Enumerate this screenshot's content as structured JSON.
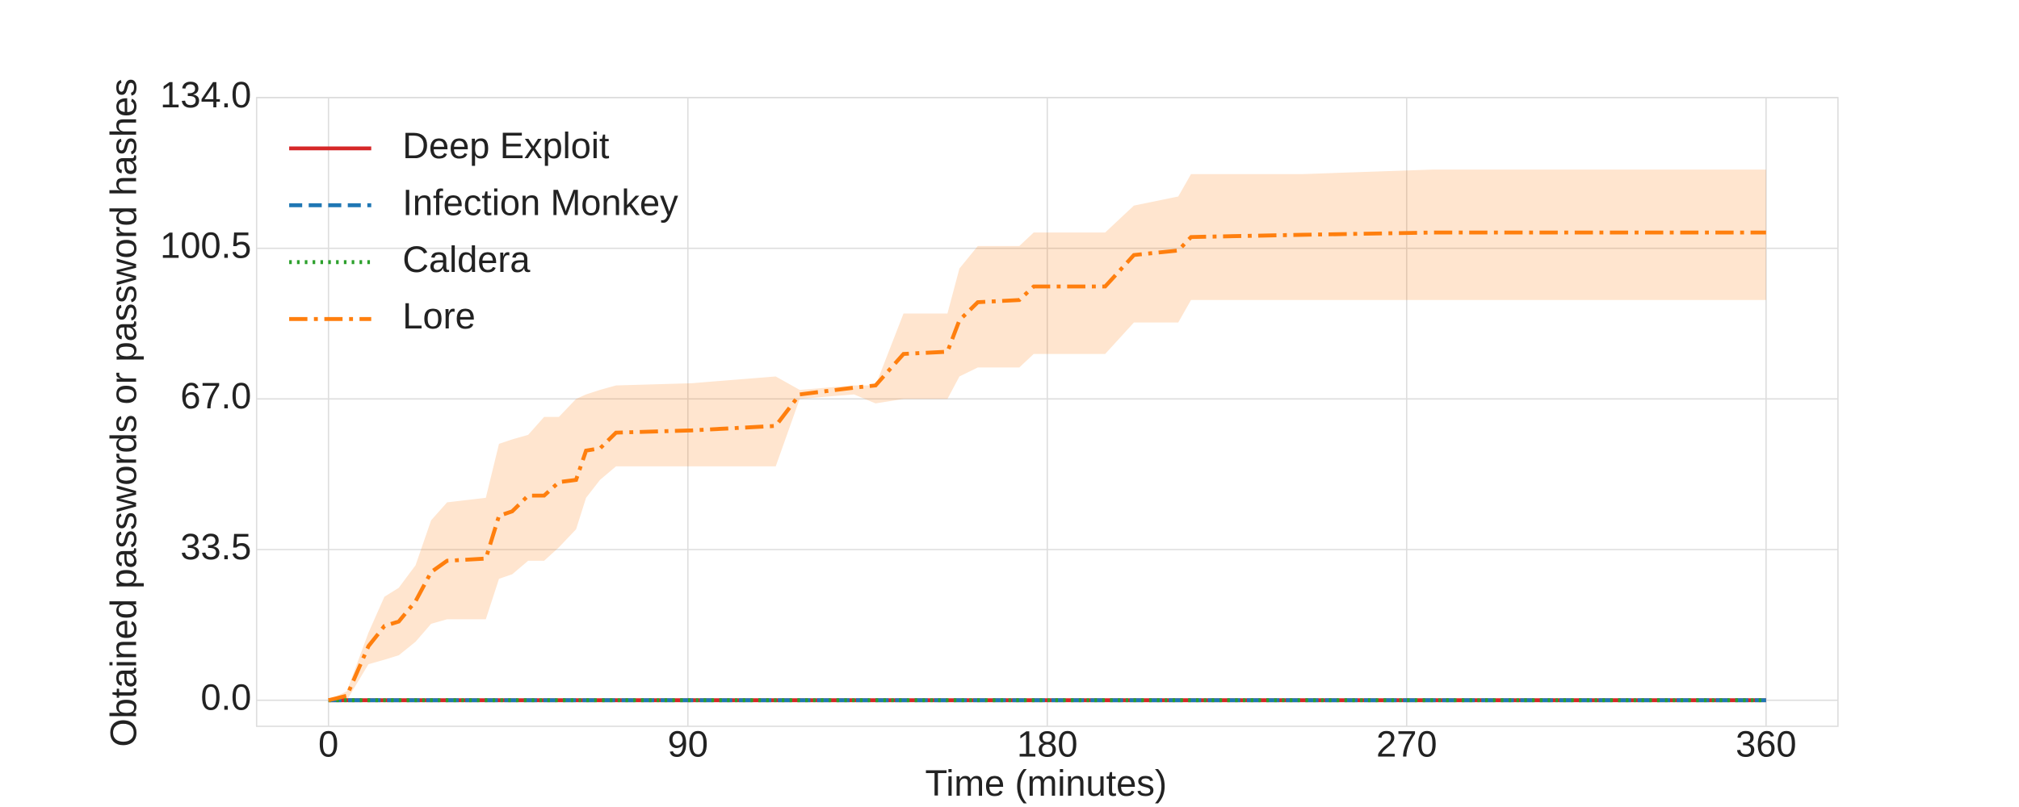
{
  "chart_data": {
    "type": "line",
    "xlabel": "Time (minutes)",
    "ylabel": "Obtained passwords or password hashes",
    "xlim": [
      -18,
      378
    ],
    "xticks": [
      0,
      90,
      180,
      270,
      360
    ],
    "ylim": [
      -5.8,
      134
    ],
    "yticks": [
      {
        "value": 0,
        "label": "0.0"
      },
      33.5,
      {
        "value": 67,
        "label": "67.0"
      },
      100.5,
      {
        "value": 134,
        "label": "134.0"
      }
    ],
    "grid": true,
    "legend": "upper left",
    "series": [
      {
        "name": "Deep Exploit",
        "color": "#d62728",
        "dash": "solid",
        "x": [
          0,
          360
        ],
        "values": [
          0,
          0
        ]
      },
      {
        "name": "Infection Monkey",
        "color": "#1f77b4",
        "dash": "dashed",
        "x": [
          0,
          360
        ],
        "values": [
          0,
          0
        ]
      },
      {
        "name": "Caldera",
        "color": "#2ca02c",
        "dash": "dotted",
        "x": [
          0,
          360
        ],
        "values": [
          0,
          0
        ]
      },
      {
        "name": "Lore",
        "color": "#ff7f0e",
        "dash": "dashdot",
        "x": [
          0,
          4.6,
          10,
          14,
          17.6,
          21.8,
          25.7,
          29.7,
          39.4,
          42.7,
          46,
          50,
          54,
          57.7,
          62,
          64.5,
          68,
          72,
          91,
          112,
          118,
          131.6,
          137,
          144,
          155,
          158,
          162.6,
          173,
          176.6,
          194.5,
          201.7,
          212.8,
          216,
          244,
          276.6,
          360
        ],
        "values": [
          0,
          1,
          12,
          16.5,
          17.5,
          22,
          28.5,
          31,
          31.5,
          41,
          42,
          45.5,
          45.5,
          48.5,
          49,
          55.5,
          56,
          59.5,
          60,
          61,
          68,
          69.5,
          70,
          77,
          77.5,
          84.5,
          88.5,
          89,
          92,
          92,
          99,
          100,
          103,
          103.5,
          104,
          104
        ],
        "upper": [
          0,
          2,
          15,
          23,
          25,
          30,
          40,
          44,
          45,
          57,
          58,
          59,
          63,
          63,
          67,
          68,
          69,
          70,
          70.5,
          72,
          69,
          70,
          70,
          86,
          86,
          96,
          101,
          101,
          104,
          104,
          110,
          112,
          117,
          117,
          118,
          118
        ],
        "lower": [
          0,
          0,
          8,
          9,
          10,
          13,
          17,
          18,
          18,
          27,
          28,
          31,
          31,
          34,
          38,
          45,
          49,
          52,
          52,
          52,
          67,
          68,
          66,
          67,
          67,
          72,
          74,
          74,
          77,
          77,
          84,
          84,
          89,
          89,
          89,
          89
        ]
      }
    ]
  }
}
